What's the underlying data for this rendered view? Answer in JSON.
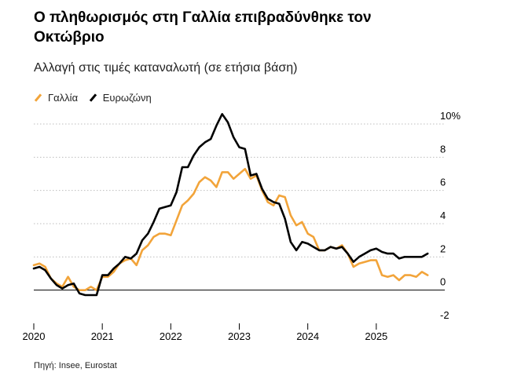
{
  "colors": {
    "france": "#f2a43a",
    "eurozone": "#000000",
    "grid": "#bdbdbd",
    "zero": "#000000"
  },
  "chart_data": {
    "type": "line",
    "title": "Ο πληθωρισμός στη Γαλλία επιβραδύνθηκε τον Οκτώβριο",
    "subtitle": "Αλλαγή στις τιμές καταναλωτή (σε ετήσια βάση)",
    "source": "Πηγή: Insee, Eurostat",
    "ylim": [
      -2,
      10
    ],
    "yticks": [
      -2,
      0,
      2,
      4,
      6,
      8,
      10
    ],
    "ytick_labels": [
      "-2",
      "0",
      "2",
      "4",
      "6",
      "8",
      "10%"
    ],
    "xlim": [
      2020.0,
      2026.0
    ],
    "xticks": [
      2020,
      2021,
      2022,
      2023,
      2024,
      2025
    ],
    "xtick_labels": [
      "2020",
      "2021",
      "2022",
      "2023",
      "2024",
      "2025"
    ],
    "grid": true,
    "legend_position": "top-left",
    "series": [
      {
        "name": "Γαλλία",
        "color_key": "france",
        "start": 2020.0,
        "step": 0.08333,
        "values": [
          1.5,
          1.6,
          1.4,
          0.7,
          0.4,
          0.2,
          0.8,
          0.2,
          0.0,
          0.0,
          0.2,
          0.0,
          0.8,
          0.8,
          1.1,
          1.6,
          1.8,
          1.9,
          1.5,
          2.4,
          2.7,
          3.2,
          3.4,
          3.4,
          3.3,
          4.2,
          5.1,
          5.4,
          5.8,
          6.5,
          6.8,
          6.6,
          6.2,
          7.1,
          7.1,
          6.7,
          7.0,
          7.3,
          6.7,
          6.9,
          6.0,
          5.3,
          5.1,
          5.7,
          5.6,
          4.5,
          3.9,
          4.1,
          3.4,
          3.2,
          2.4,
          2.4,
          2.6,
          2.5,
          2.7,
          2.2,
          1.4,
          1.6,
          1.7,
          1.8,
          1.8,
          0.9,
          0.8,
          0.9,
          0.6,
          0.9,
          0.9,
          0.8,
          1.1,
          0.9
        ]
      },
      {
        "name": "Ευρωζώνη",
        "color_key": "eurozone",
        "start": 2020.0,
        "step": 0.08333,
        "values": [
          1.3,
          1.4,
          1.2,
          0.7,
          0.3,
          0.1,
          0.3,
          0.4,
          -0.2,
          -0.3,
          -0.3,
          -0.3,
          0.9,
          0.9,
          1.3,
          1.6,
          2.0,
          1.9,
          2.2,
          3.0,
          3.4,
          4.1,
          4.9,
          5.0,
          5.1,
          5.9,
          7.4,
          7.4,
          8.1,
          8.6,
          8.9,
          9.1,
          9.9,
          10.6,
          10.1,
          9.2,
          8.6,
          8.5,
          6.9,
          7.0,
          6.1,
          5.5,
          5.3,
          5.2,
          4.3,
          2.9,
          2.4,
          2.9,
          2.8,
          2.6,
          2.4,
          2.4,
          2.6,
          2.5,
          2.6,
          2.2,
          1.7,
          2.0,
          2.2,
          2.4,
          2.5,
          2.3,
          2.2,
          2.2,
          1.9,
          2.0,
          2.0,
          2.0,
          2.0,
          2.2
        ]
      }
    ]
  }
}
